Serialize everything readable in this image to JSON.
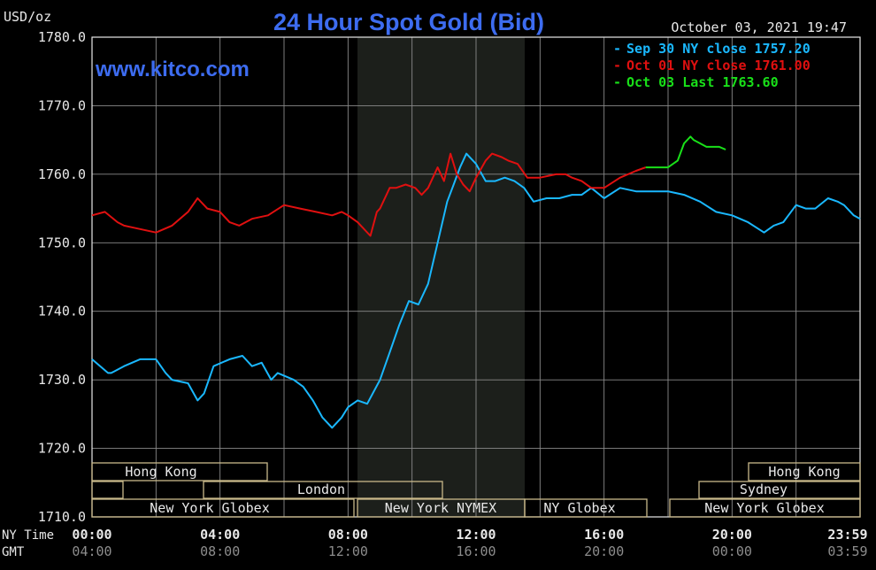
{
  "header": {
    "unit_label": "USD/oz",
    "title": "24 Hour Spot Gold (Bid)",
    "date_time": "October 03, 2021 19:47",
    "site": "www.kitco.com"
  },
  "colors": {
    "background": "#000000",
    "title": "#3d6cf0",
    "site": "#3d6cf0",
    "sep30": "#1ab8ff",
    "oct01": "#e01010",
    "oct03": "#19e019",
    "nymex_shade": "#1c1f1b",
    "session_box": "#c9b98a",
    "axis_text": "#e8e8e8"
  },
  "legend": [
    {
      "label": "Sep 30 NY close 1757.20",
      "color": "#1ab8ff"
    },
    {
      "label": "Oct 01 NY close 1761.00",
      "color": "#e01010"
    },
    {
      "label": "Oct 03 Last 1763.60",
      "color": "#19e019"
    }
  ],
  "axes": {
    "ny_time_label": "NY Time",
    "gmt_label": "GMT",
    "ny_ticks": [
      "00:00",
      "04:00",
      "08:00",
      "12:00",
      "16:00",
      "20:00",
      "23:59"
    ],
    "gmt_ticks": [
      "04:00",
      "08:00",
      "12:00",
      "16:00",
      "20:00",
      "00:00",
      "03:59"
    ]
  },
  "sessions": {
    "row1": [
      "Hong Kong",
      "Hong Kong"
    ],
    "row2": [
      "London",
      "Sydney"
    ],
    "row3": [
      "New York Globex",
      "New York NYMEX",
      "NY Globex",
      "New York Globex"
    ]
  },
  "chart_data": {
    "type": "line",
    "title": "24 Hour Spot Gold (Bid)",
    "ylabel": "USD/oz",
    "ylim": [
      1710,
      1780
    ],
    "y_ticks": [
      "1780.0",
      "1770.0",
      "1760.0",
      "1750.0",
      "1740.0",
      "1730.0",
      "1720.0",
      "1710.0"
    ],
    "xlim_hours": [
      0,
      24
    ],
    "grid": true,
    "legend_position": "top-right",
    "shaded_session": "New York NYMEX",
    "series": [
      {
        "name": "Sep 30 NY close 1757.20",
        "x": [
          0.0,
          0.5,
          0.6,
          1.0,
          1.5,
          2.0,
          2.3,
          2.5,
          3.0,
          3.3,
          3.5,
          3.8,
          4.3,
          4.7,
          5.0,
          5.3,
          5.6,
          5.8,
          6.3,
          6.6,
          6.9,
          7.2,
          7.5,
          7.8,
          8.0,
          8.3,
          8.6,
          9.0,
          9.3,
          9.6,
          9.9,
          10.2,
          10.5,
          10.8,
          11.1,
          11.3,
          11.5,
          11.7,
          12.0,
          12.3,
          12.6,
          12.9,
          13.2,
          13.5,
          13.8,
          14.2,
          14.6,
          15.0,
          15.3,
          15.6,
          16.0,
          16.5,
          17.0,
          17.5,
          18.0,
          18.5,
          19.0,
          19.5,
          20.0,
          20.5,
          21.0,
          21.3,
          21.6,
          22.0,
          22.3,
          22.6,
          23.0,
          23.3,
          23.5,
          23.8,
          24.0
        ],
        "values": [
          1733.0,
          1731.0,
          1731.0,
          1732.0,
          1733.0,
          1733.0,
          1731.0,
          1730.0,
          1729.5,
          1727.0,
          1728.0,
          1732.0,
          1733.0,
          1733.5,
          1732.0,
          1732.5,
          1730.0,
          1731.0,
          1730.0,
          1729.0,
          1727.0,
          1724.5,
          1723.0,
          1724.5,
          1726.0,
          1727.0,
          1726.5,
          1730.0,
          1734.0,
          1738.0,
          1741.5,
          1741.0,
          1744.0,
          1750.0,
          1756.0,
          1758.5,
          1761.0,
          1763.0,
          1761.5,
          1759.0,
          1759.0,
          1759.5,
          1759.0,
          1758.0,
          1756.0,
          1756.5,
          1756.5,
          1757.0,
          1757.0,
          1758.0,
          1756.5,
          1758.0,
          1757.5,
          1757.5,
          1757.5,
          1757.0,
          1756.0,
          1754.5,
          1754.0,
          1753.0,
          1751.5,
          1752.5,
          1753.0,
          1755.5,
          1755.0,
          1755.0,
          1756.5,
          1756.0,
          1755.5,
          1754.0,
          1753.5
        ]
      },
      {
        "name": "Oct 01 NY close 1761.00",
        "x": [
          0.0,
          0.4,
          0.8,
          1.0,
          1.5,
          2.0,
          2.5,
          3.0,
          3.3,
          3.6,
          4.0,
          4.3,
          4.6,
          5.0,
          5.5,
          6.0,
          6.5,
          7.0,
          7.5,
          7.8,
          8.0,
          8.3,
          8.7,
          8.9,
          9.0,
          9.3,
          9.5,
          9.8,
          10.1,
          10.3,
          10.5,
          10.8,
          11.0,
          11.2,
          11.4,
          11.6,
          11.8,
          12.0,
          12.3,
          12.5,
          12.8,
          13.0,
          13.3,
          13.6,
          14.0,
          14.5,
          14.8,
          15.0,
          15.3,
          15.6,
          16.0,
          16.5,
          17.0,
          17.3
        ],
        "values": [
          1754.0,
          1754.5,
          1753.0,
          1752.5,
          1752.0,
          1751.5,
          1752.5,
          1754.5,
          1756.5,
          1755.0,
          1754.5,
          1753.0,
          1752.5,
          1753.5,
          1754.0,
          1755.5,
          1755.0,
          1754.5,
          1754.0,
          1754.5,
          1754.0,
          1753.0,
          1751.0,
          1754.5,
          1755.0,
          1758.0,
          1758.0,
          1758.5,
          1758.0,
          1757.0,
          1758.0,
          1761.0,
          1759.0,
          1763.0,
          1760.0,
          1758.5,
          1757.5,
          1759.5,
          1762.0,
          1763.0,
          1762.5,
          1762.0,
          1761.5,
          1759.5,
          1759.5,
          1760.0,
          1760.0,
          1759.5,
          1759.0,
          1758.0,
          1758.0,
          1759.5,
          1760.5,
          1761.0
        ]
      },
      {
        "name": "Oct 03 Last 1763.60",
        "x": [
          17.3,
          17.6,
          18.0,
          18.3,
          18.5,
          18.7,
          18.8,
          19.0,
          19.2,
          19.4,
          19.6,
          19.8
        ],
        "values": [
          1761.0,
          1761.0,
          1761.0,
          1762.0,
          1764.5,
          1765.5,
          1765.0,
          1764.5,
          1764.0,
          1764.0,
          1764.0,
          1763.6
        ]
      }
    ]
  }
}
